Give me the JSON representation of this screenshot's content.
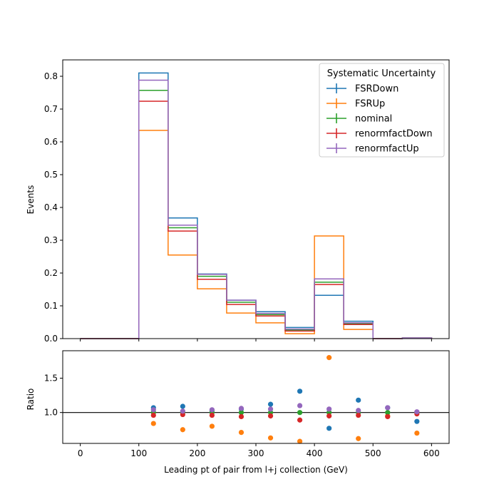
{
  "chart_data": {
    "type": "step-histogram-with-ratio",
    "xlabel": "Leading pt of pair from l+j collection (GeV)",
    "top_panel": {
      "ylabel": "Events",
      "xlim": [
        -30,
        630
      ],
      "ylim": [
        0,
        0.85
      ],
      "yticks": [
        0.0,
        0.1,
        0.2,
        0.3,
        0.4,
        0.5,
        0.6,
        0.7,
        0.8
      ],
      "ytick_labels": [
        "0.0",
        "0.1",
        "0.2",
        "0.3",
        "0.4",
        "0.5",
        "0.6",
        "0.7",
        "0.8"
      ]
    },
    "ratio_panel": {
      "ylabel": "Ratio",
      "xlim": [
        -30,
        630
      ],
      "ylim": [
        0.55,
        1.9
      ],
      "yticks": [
        1.0,
        1.5
      ],
      "ytick_labels": [
        "1.0",
        "1.5"
      ],
      "reference_line": 1.0
    },
    "xticks": [
      0,
      100,
      200,
      300,
      400,
      500,
      600
    ],
    "xtick_labels": [
      "0",
      "100",
      "200",
      "300",
      "400",
      "500",
      "600"
    ],
    "bin_edges": [
      0,
      50,
      100,
      150,
      200,
      250,
      300,
      350,
      400,
      450,
      500,
      550,
      600
    ],
    "legend": {
      "title": "Systematic Uncertainty",
      "placement": "top-right"
    },
    "series": [
      {
        "name": "FSRDown",
        "color": "#1f77b4",
        "values": [
          0,
          0,
          0.81,
          0.368,
          0.197,
          0.117,
          0.082,
          0.034,
          0.132,
          0.053,
          0,
          0.002
        ],
        "ratio": [
          null,
          null,
          1.07,
          1.09,
          1.03,
          1.05,
          1.12,
          1.31,
          0.77,
          1.18,
          1.07,
          0.87
        ]
      },
      {
        "name": "FSRUp",
        "color": "#ff7f0e",
        "values": [
          0,
          0,
          0.635,
          0.255,
          0.152,
          0.078,
          0.048,
          0.015,
          0.313,
          0.028,
          0,
          0.001
        ],
        "ratio": [
          null,
          null,
          0.84,
          0.75,
          0.8,
          0.71,
          0.63,
          0.58,
          1.8,
          0.62,
          0.95,
          0.7
        ]
      },
      {
        "name": "nominal",
        "color": "#2ca02c",
        "values": [
          0,
          0,
          0.757,
          0.338,
          0.19,
          0.111,
          0.073,
          0.026,
          0.172,
          0.046,
          0,
          0.002
        ],
        "ratio": [
          null,
          null,
          1.0,
          1.0,
          1.0,
          1.0,
          1.0,
          1.0,
          1.0,
          1.0,
          1.0,
          1.0
        ]
      },
      {
        "name": "renormfactDown",
        "color": "#d62728",
        "values": [
          0,
          0,
          0.724,
          0.328,
          0.181,
          0.104,
          0.069,
          0.023,
          0.165,
          0.043,
          0,
          0.002
        ],
        "ratio": [
          null,
          null,
          0.96,
          0.97,
          0.96,
          0.94,
          0.95,
          0.89,
          0.95,
          0.96,
          0.94,
          0.98
        ]
      },
      {
        "name": "renormfactUp",
        "color": "#9467bd",
        "values": [
          0,
          0,
          0.788,
          0.346,
          0.196,
          0.117,
          0.077,
          0.029,
          0.182,
          0.048,
          0,
          0.002
        ],
        "ratio": [
          null,
          null,
          1.04,
          1.02,
          1.04,
          1.06,
          1.05,
          1.1,
          1.05,
          1.03,
          1.07,
          1.01
        ]
      }
    ]
  }
}
